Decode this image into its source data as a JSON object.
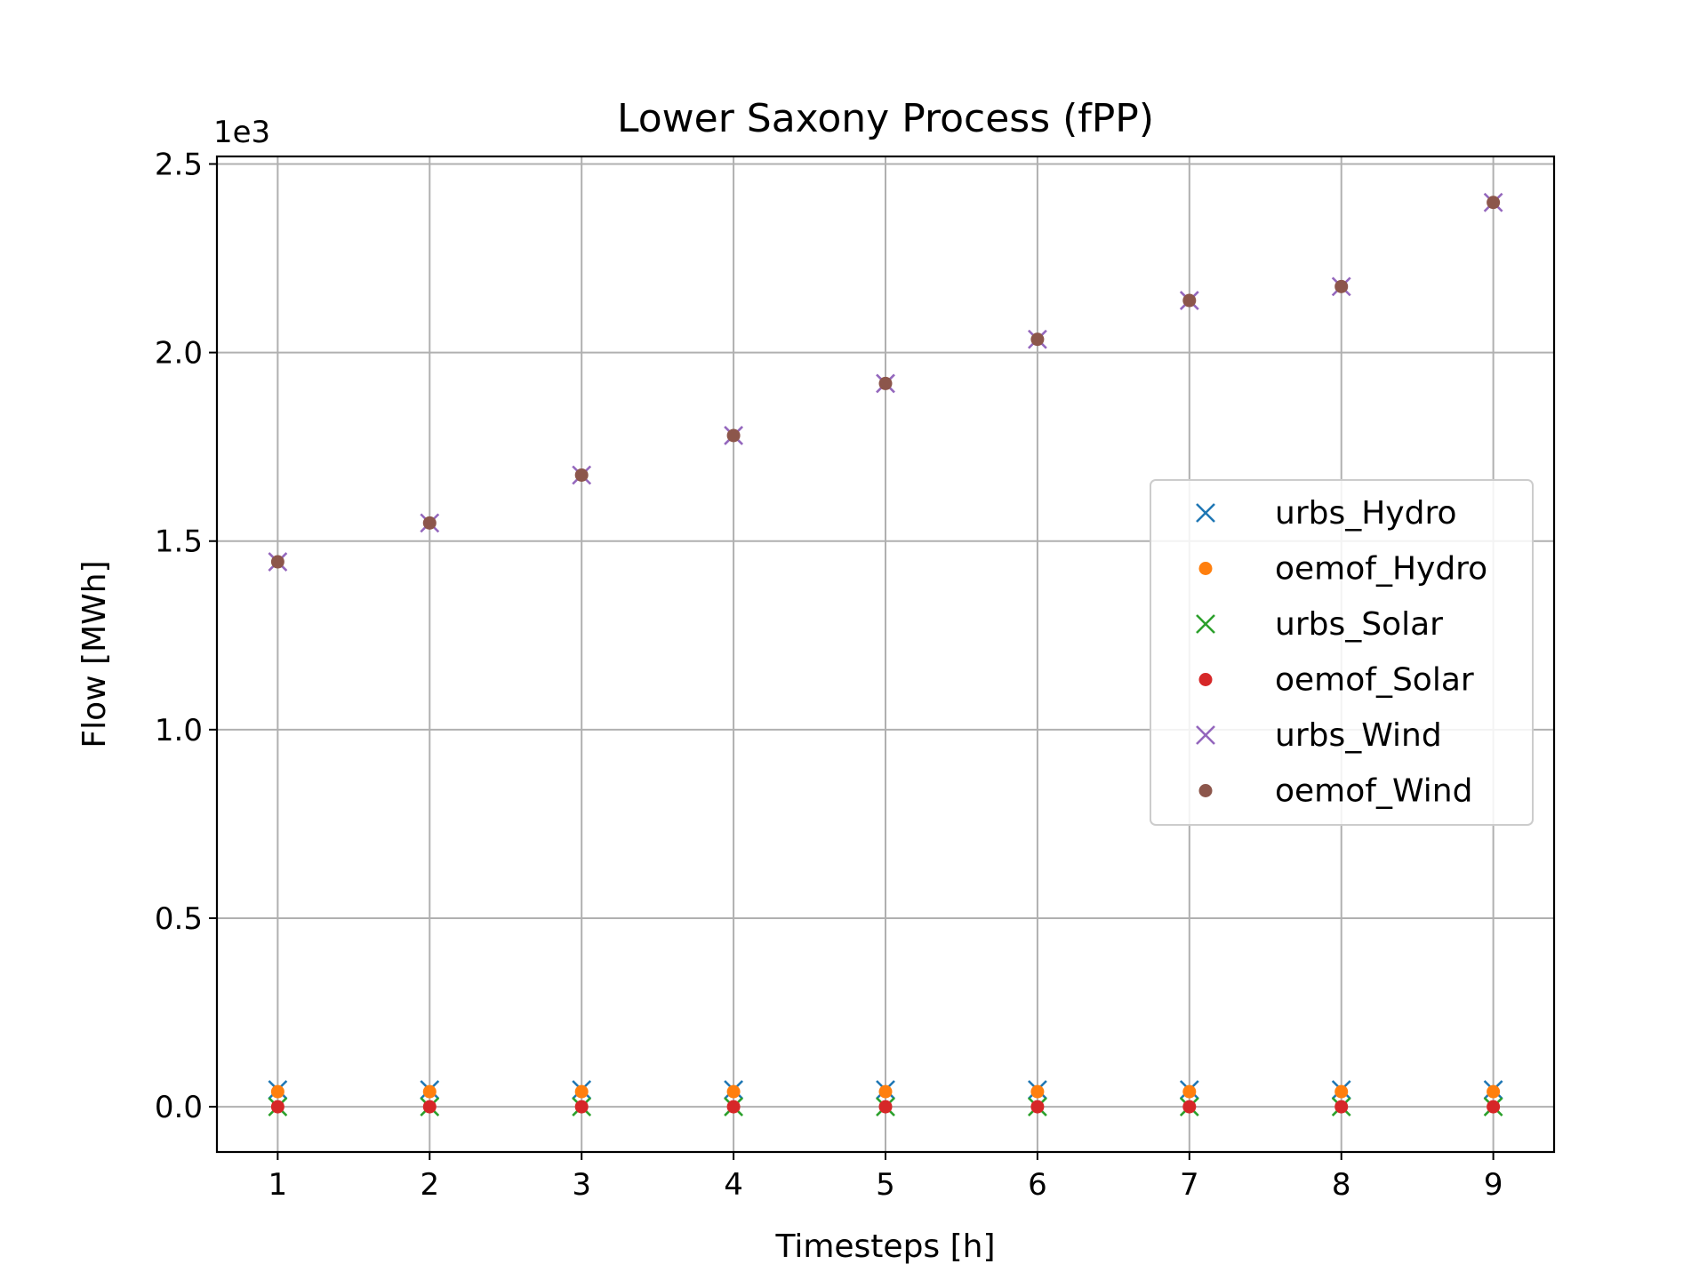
{
  "chart_data": {
    "type": "scatter",
    "title": "Lower Saxony Process (fPP)",
    "xlabel": "Timesteps [h]",
    "ylabel": "Flow [MWh]",
    "y_offset_label": "1e3",
    "x": [
      1,
      2,
      3,
      4,
      5,
      6,
      7,
      8,
      9
    ],
    "xlim": [
      0.6,
      9.4
    ],
    "ylim": [
      -120,
      2520
    ],
    "xticks": [
      "1",
      "2",
      "3",
      "4",
      "5",
      "6",
      "7",
      "8",
      "9"
    ],
    "yticks": [
      {
        "value": 0,
        "label": "0.0"
      },
      {
        "value": 500,
        "label": "0.5"
      },
      {
        "value": 1000,
        "label": "1.0"
      },
      {
        "value": 1500,
        "label": "1.5"
      },
      {
        "value": 2000,
        "label": "2.0"
      },
      {
        "value": 2500,
        "label": "2.5"
      }
    ],
    "grid": true,
    "legend_position": "center-right",
    "series": [
      {
        "name": "urbs_Hydro",
        "marker": "x",
        "color": "#1f77b4",
        "values": [
          45,
          45,
          45,
          45,
          45,
          45,
          45,
          45,
          45
        ]
      },
      {
        "name": "oemof_Hydro",
        "marker": "dot",
        "color": "#ff7f0e",
        "values": [
          40,
          40,
          40,
          40,
          40,
          40,
          40,
          40,
          40
        ]
      },
      {
        "name": "urbs_Solar",
        "marker": "x",
        "color": "#2ca02c",
        "values": [
          0,
          0,
          0,
          0,
          0,
          0,
          0,
          0,
          0
        ]
      },
      {
        "name": "oemof_Solar",
        "marker": "dot",
        "color": "#d62728",
        "values": [
          0,
          0,
          0,
          0,
          0,
          0,
          0,
          0,
          0
        ]
      },
      {
        "name": "urbs_Wind",
        "marker": "x",
        "color": "#9467bd",
        "values": [
          1445,
          1548,
          1675,
          1780,
          1918,
          2035,
          2138,
          2175,
          2398
        ]
      },
      {
        "name": "oemof_Wind",
        "marker": "dot",
        "color": "#8c564b",
        "values": [
          1445,
          1548,
          1675,
          1780,
          1918,
          2035,
          2138,
          2175,
          2398
        ]
      }
    ]
  }
}
